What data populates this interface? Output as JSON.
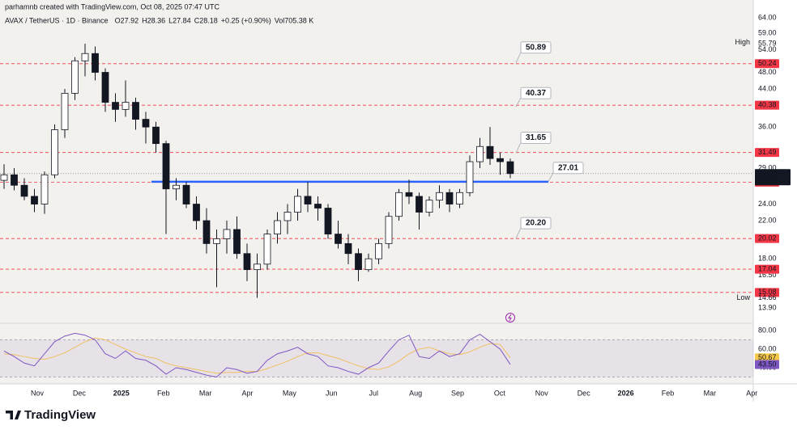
{
  "header": {
    "credit": "parhamnb created with TradingView.com, Oct 08, 2025 07:47 UTC",
    "symbol": "AVAX / TetherUS · 1D · Binance",
    "ohlc": [
      {
        "label": "O",
        "value": 27.92
      },
      {
        "label": "H",
        "value": 28.36
      },
      {
        "label": "L",
        "value": 27.84
      },
      {
        "label": "C",
        "value": 28.18
      }
    ],
    "change": "+0.25 (+0.90%)",
    "volume_label": "Vol",
    "volume": "705.38 K"
  },
  "chart_data": {
    "type": "candlestick",
    "log_scale": true,
    "grid": false,
    "ylim": [
      12.82,
      65.9
    ],
    "yticks": [
      {
        "value": 64,
        "label": "64.00"
      },
      {
        "value": 59,
        "label": "59.00"
      },
      {
        "value": 54,
        "label": "54.00"
      },
      {
        "value": 48,
        "label": "48.00"
      },
      {
        "value": 44,
        "label": "44.00"
      },
      {
        "value": 40,
        "label": "40.00"
      },
      {
        "value": 36,
        "label": "36.00"
      },
      {
        "value": 29,
        "label": "29.00"
      },
      {
        "value": 24,
        "label": "24.00"
      },
      {
        "value": 22,
        "label": "22.00"
      },
      {
        "value": 18,
        "label": "18.00"
      },
      {
        "value": 16.5,
        "label": "16.50"
      },
      {
        "value": 13.9,
        "label": "13.90"
      }
    ],
    "candles": {
      "open": [
        27.2,
        28,
        26.5,
        25,
        24,
        28,
        35.5,
        43,
        51,
        53,
        48,
        41,
        39.5,
        41,
        37.5,
        36,
        33,
        26,
        26.5,
        24,
        22,
        19.5,
        20,
        21,
        18.5,
        17,
        17.5,
        20.5,
        22,
        23,
        25,
        24,
        23.5,
        20.5,
        19.5,
        18.5,
        17,
        18,
        19.5,
        22.5,
        25.5,
        25,
        23,
        24.5,
        25.5,
        24,
        25.5,
        30,
        32.5,
        30.5,
        30
      ],
      "high": [
        29.6,
        29,
        27.5,
        26,
        28.5,
        36.5,
        44,
        52,
        55.79,
        55,
        49,
        43,
        46,
        42,
        39,
        37,
        33.5,
        27.5,
        27,
        25,
        23.5,
        21,
        22,
        22.5,
        19.5,
        18.5,
        21,
        23,
        24,
        26,
        27,
        25,
        24,
        22,
        20.5,
        19,
        18.5,
        20,
        23,
        26,
        27.3,
        25.5,
        25,
        26.5,
        26,
        26,
        31,
        34,
        36,
        31.5,
        30.5
      ],
      "low": [
        26,
        25.8,
        24.5,
        23,
        22.8,
        27.5,
        34,
        41.5,
        47,
        46,
        39,
        37,
        38,
        35.5,
        33,
        31.5,
        20.5,
        24.5,
        23.5,
        21,
        18.5,
        15.5,
        18.5,
        18,
        16,
        14.66,
        17,
        19.5,
        20.5,
        22,
        23,
        22,
        20,
        19,
        17.5,
        16,
        16.8,
        17.5,
        19,
        22,
        24,
        21,
        22.5,
        23.5,
        23,
        23.5,
        25,
        29,
        29.5,
        28,
        27.5
      ],
      "close": [
        28,
        26.5,
        25,
        24,
        28,
        35.5,
        43,
        51,
        53,
        48,
        41,
        39.5,
        41,
        37.5,
        36,
        33,
        26,
        26.5,
        24,
        22,
        19.5,
        20,
        21,
        18.5,
        17,
        17.5,
        20.5,
        22,
        23,
        25,
        24,
        23.5,
        20.5,
        19.5,
        18.5,
        17,
        18,
        19.5,
        22.5,
        25.5,
        25,
        23,
        24.5,
        25.5,
        24,
        25.5,
        30,
        32.5,
        30.5,
        30,
        28.18
      ]
    },
    "levels": [
      50.24,
      40.38,
      31.49,
      26.94,
      20.02,
      17.04,
      15.08
    ],
    "level_color": "#f23645",
    "callouts": [
      50.89,
      40.37,
      31.65,
      27.01,
      {
        "value": 20.2,
        "label": "20.20"
      }
    ],
    "support": {
      "value": 27.0,
      "color": "#2962ff"
    },
    "last_price": {
      "value": 28.18,
      "label": "28.18",
      "countdown": "16:12:12"
    },
    "high": {
      "label": "High",
      "value": 55.79
    },
    "low": {
      "label": "Low",
      "value": 14.66
    },
    "x_labels": [
      "Nov",
      "Dec",
      "2025",
      "Feb",
      "Mar",
      "Apr",
      "May",
      "Jun",
      "Jul",
      "Aug",
      "Sep",
      "Oct",
      "Nov",
      "Dec",
      "2026",
      "Feb",
      "Mar",
      "Apr"
    ],
    "rsi": {
      "ylim": [
        22.6,
        87.8
      ],
      "yticks": [
        {
          "value": 80,
          "label": "80.00"
        },
        {
          "value": 60,
          "label": "60.00"
        },
        {
          "value": 40,
          "label": "40.00"
        }
      ],
      "band": [
        30,
        70
      ],
      "series": [
        {
          "name": "RSI",
          "color": "#7e57c2",
          "values": [
            58,
            52,
            45,
            42,
            55,
            68,
            74,
            77,
            75,
            70,
            55,
            50,
            58,
            50,
            48,
            42,
            33,
            40,
            38,
            35,
            32,
            30,
            40,
            38,
            34,
            36,
            48,
            55,
            58,
            62,
            55,
            52,
            42,
            40,
            36,
            33,
            40,
            45,
            58,
            70,
            75,
            52,
            50,
            58,
            52,
            55,
            70,
            76,
            68,
            60,
            43.5
          ]
        },
        {
          "name": "MA",
          "color": "#f0c060",
          "values": [
            55,
            54,
            52,
            50,
            49,
            52,
            56,
            62,
            68,
            72,
            70,
            65,
            60,
            56,
            52,
            50,
            45,
            42,
            40,
            38,
            36,
            34,
            35,
            35,
            36,
            36,
            39,
            43,
            47,
            52,
            56,
            56,
            53,
            50,
            46,
            42,
            39,
            38,
            41,
            47,
            55,
            60,
            62,
            58,
            55,
            54,
            57,
            62,
            66,
            65,
            50.67
          ]
        }
      ],
      "badges": [
        {
          "value": 50.67,
          "label": "50.67",
          "color": "#f7c948"
        },
        {
          "value": 43.5,
          "label": "43.50",
          "color": "#7e57c2"
        }
      ]
    }
  },
  "footer": {
    "brand": "TradingView"
  }
}
